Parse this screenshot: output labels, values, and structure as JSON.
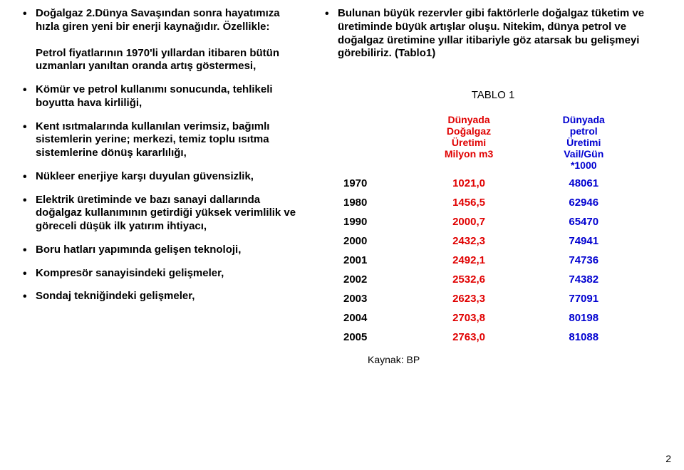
{
  "left": {
    "p1": "Doğalgaz 2.Dünya Savaşından sonra hayatımıza hızla giren yeni bir enerji kaynağıdır. Özellikle:",
    "p2": "Petrol fiyatlarının 1970'li yıllardan itibaren bütün uzmanları yanıltan oranda artış göstermesi,",
    "p3": "Kömür ve petrol kullanımı sonucunda, tehlikeli boyutta hava kirliliği,",
    "p4": "Kent ısıtmalarında kullanılan verimsiz, bağımlı sistemlerin yerine; merkezi, temiz toplu ısıtma sistemlerine dönüş kararlılığı,",
    "p5": "Nükleer enerjiye karşı duyulan güvensizlik,",
    "p6": "Elektrik üretiminde ve bazı sanayi dallarında doğalgaz kullanımının getirdiği yüksek verimlilik ve göreceli düşük ilk yatırım ihtiyacı,",
    "p7": "Boru hatları yapımında gelişen teknoloji,",
    "p8": "Kompresör sanayisindeki gelişmeler,",
    "p9": "Sondaj tekniğindeki gelişmeler,"
  },
  "right": {
    "intro": "Bulunan büyük rezervler gibi faktörlerle doğalgaz tüketim ve üretiminde büyük artışlar oluşu. Nitekim, dünya petrol ve doğalgaz üretimine yıllar itibariyle göz atarsak bu gelişmeyi görebiliriz. (Tablo1)",
    "caption": "TABLO 1",
    "headers": {
      "c1": "",
      "c2_l1": "Dünyada",
      "c2_l2": "Doğalgaz",
      "c2_l3": "Üretimi",
      "c2_l4": "Milyon m3",
      "c3_l1": "Dünyada",
      "c3_l2": "petrol",
      "c3_l3": "Üretimi",
      "c3_l4": "Vail/Gün",
      "c3_l5": "*1000"
    },
    "rows": {
      "r0y": "1970",
      "r0a": "1021,0",
      "r0b": "48061",
      "r1y": "1980",
      "r1a": "1456,5",
      "r1b": "62946",
      "r2y": "1990",
      "r2a": "2000,7",
      "r2b": "65470",
      "r3y": "2000",
      "r3a": "2432,3",
      "r3b": "74941",
      "r4y": "2001",
      "r4a": "2492,1",
      "r4b": "74736",
      "r5y": "2002",
      "r5a": "2532,6",
      "r5b": "74382",
      "r6y": "2003",
      "r6a": "2623,3",
      "r6b": "77091",
      "r7y": "2004",
      "r7a": "2703,8",
      "r7b": "80198",
      "r8y": "2005",
      "r8a": "2763,0",
      "r8b": "81088"
    },
    "source": "Kaynak: BP",
    "colors": {
      "red": "#e00000",
      "blue": "#0000d0"
    }
  },
  "page": "2"
}
